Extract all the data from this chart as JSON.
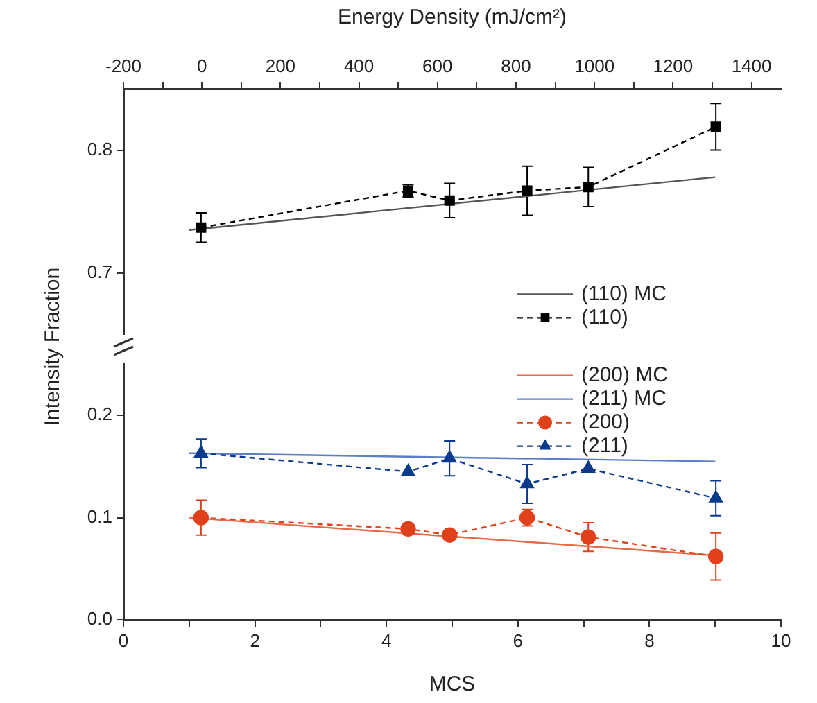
{
  "chart_data": [
    {
      "type": "line",
      "x2label": "Energy Density (mJ/cm²)",
      "ylabel": "Intensity Fraction",
      "xlim": [
        0,
        10
      ],
      "x2lim": [
        -200,
        1475
      ],
      "x2ticks": [
        -200,
        {
          "value": -100,
          "label": null
        },
        0,
        {
          "value": 100,
          "label": null
        },
        200,
        {
          "value": 300,
          "label": null
        },
        400,
        {
          "value": 500,
          "label": null
        },
        600,
        {
          "value": 700,
          "label": null
        },
        800,
        {
          "value": 900,
          "label": null
        },
        1000,
        {
          "value": 1100,
          "label": null
        },
        1200,
        {
          "value": 1300,
          "label": null
        },
        1400
      ],
      "ylim": [
        0.65,
        0.85
      ],
      "yticks": [
        0.7,
        0.8
      ],
      "grid": false,
      "legend": "bottom right",
      "series": [
        {
          "name": "(110) MC",
          "color": "#555555",
          "x": [
            1.0,
            9.0
          ],
          "values": [
            0.735,
            0.778
          ],
          "line_style": "solid",
          "marker": "none"
        },
        {
          "name": "(110)",
          "color": "#000000",
          "x": [
            1.18,
            4.33,
            4.96,
            6.14,
            7.07,
            9.01
          ],
          "values": [
            0.737,
            0.767,
            0.759,
            0.767,
            0.77,
            0.819
          ],
          "errors": [
            0.012,
            0.005,
            0.014,
            0.02,
            0.016,
            0.019
          ],
          "line_style": "dashed",
          "marker": "square"
        }
      ]
    },
    {
      "type": "line",
      "xlabel": "MCS",
      "xlim": [
        0,
        10
      ],
      "xticks": [
        0,
        {
          "value": 1,
          "label": null
        },
        2,
        {
          "value": 3,
          "label": null
        },
        4,
        {
          "value": 5,
          "label": null
        },
        6,
        {
          "value": 7,
          "label": null
        },
        8,
        {
          "value": 9,
          "label": null
        },
        10
      ],
      "ylim": [
        0,
        0.25
      ],
      "yticks": [
        {
          "value": 0,
          "label": "0.0"
        },
        0.1,
        0.2
      ],
      "grid": false,
      "legend": "top right",
      "series": [
        {
          "name": "(200) MC",
          "color": "#e86a4a",
          "x": [
            1.0,
            9.0
          ],
          "values": [
            0.1,
            0.063
          ],
          "line_style": "solid",
          "marker": "none"
        },
        {
          "name": "(211) MC",
          "color": "#5a7fc4",
          "x": [
            1.0,
            9.0
          ],
          "values": [
            0.163,
            0.155
          ],
          "line_style": "solid",
          "marker": "none"
        },
        {
          "name": "(200)",
          "color": "#e0401a",
          "x": [
            1.18,
            4.33,
            4.96,
            6.14,
            7.07,
            9.01
          ],
          "values": [
            0.1,
            0.089,
            0.083,
            0.1,
            0.081,
            0.062
          ],
          "errors": [
            0.017,
            null,
            null,
            0.008,
            0.014,
            0.023
          ],
          "line_style": "dashed",
          "marker": "circle"
        },
        {
          "name": "(211)",
          "color": "#0a3a8c",
          "x": [
            1.18,
            4.33,
            4.96,
            6.14,
            7.07,
            9.01
          ],
          "values": [
            0.163,
            0.145,
            0.158,
            0.133,
            0.148,
            0.119
          ],
          "errors": [
            0.014,
            null,
            0.017,
            0.019,
            null,
            0.017
          ],
          "line_style": "dashed",
          "marker": "triangle"
        }
      ]
    }
  ]
}
